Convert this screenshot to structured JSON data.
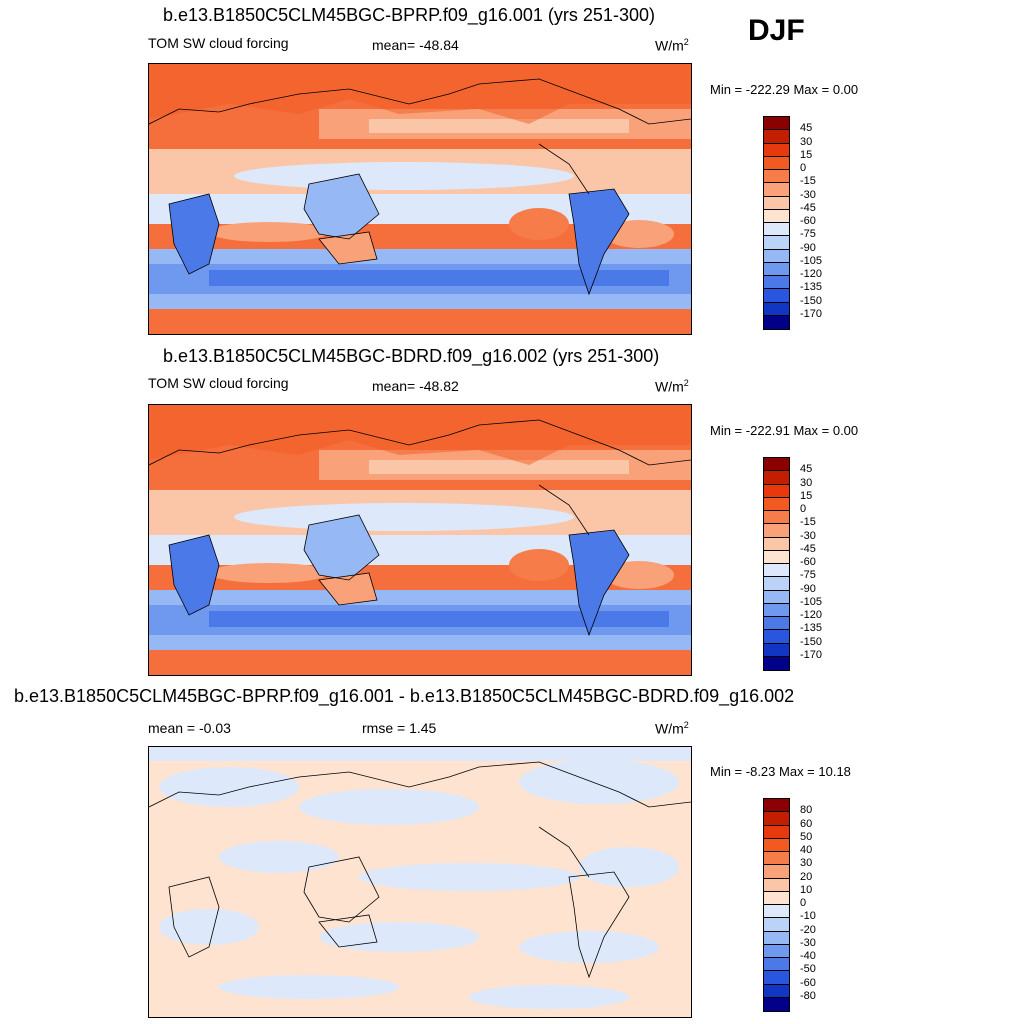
{
  "season": "DJF",
  "panels": [
    {
      "title": "b.e13.B1850C5CLM45BGC-BPRP.f09_g16.001 (yrs 251-300)",
      "left_label": "TOM SW cloud forcing",
      "center_label": "mean= -48.84",
      "units": "W/m",
      "units_sup": "2",
      "minmax": "Min = -222.29 Max =   0.00",
      "type": "field",
      "colorbar": {
        "labels": [
          "45",
          "30",
          "15",
          "0",
          "-15",
          "-30",
          "-45",
          "-60",
          "-75",
          "-90",
          "-105",
          "-120",
          "-135",
          "-150",
          "-170"
        ],
        "colors": [
          "#8b0000",
          "#c41e00",
          "#e8380d",
          "#f25a22",
          "#f67c4a",
          "#f9a27a",
          "#fbc6a8",
          "#fde3d0",
          "#dde9fb",
          "#bcd3f8",
          "#96b8f4",
          "#6f99ee",
          "#4b79e8",
          "#2a55de",
          "#1236c4",
          "#000088"
        ]
      }
    },
    {
      "title": "b.e13.B1850C5CLM45BGC-BDRD.f09_g16.002 (yrs 251-300)",
      "left_label": "TOM SW cloud forcing",
      "center_label": "mean= -48.82",
      "units": "W/m",
      "units_sup": "2",
      "minmax": "Min = -222.91 Max =   0.00",
      "type": "field",
      "colorbar": {
        "labels": [
          "45",
          "30",
          "15",
          "0",
          "-15",
          "-30",
          "-45",
          "-60",
          "-75",
          "-90",
          "-105",
          "-120",
          "-135",
          "-150",
          "-170"
        ],
        "colors": [
          "#8b0000",
          "#c41e00",
          "#e8380d",
          "#f25a22",
          "#f67c4a",
          "#f9a27a",
          "#fbc6a8",
          "#fde3d0",
          "#dde9fb",
          "#bcd3f8",
          "#96b8f4",
          "#6f99ee",
          "#4b79e8",
          "#2a55de",
          "#1236c4",
          "#000088"
        ]
      }
    },
    {
      "title": "b.e13.B1850C5CLM45BGC-BPRP.f09_g16.001 - b.e13.B1850C5CLM45BGC-BDRD.f09_g16.002",
      "left_label": "mean =  -0.03",
      "center_label": "rmse =   1.45",
      "units": "W/m",
      "units_sup": "2",
      "minmax": "Min =  -8.23 Max =  10.18",
      "type": "diff",
      "colorbar": {
        "labels": [
          "80",
          "60",
          "50",
          "40",
          "30",
          "20",
          "10",
          "0",
          "-10",
          "-20",
          "-30",
          "-40",
          "-50",
          "-60",
          "-80"
        ],
        "colors": [
          "#8b0000",
          "#c41e00",
          "#e8380d",
          "#f25a22",
          "#f67c4a",
          "#f9a27a",
          "#fbc6a8",
          "#fde3d0",
          "#dde9fb",
          "#bcd3f8",
          "#96b8f4",
          "#6f99ee",
          "#4b79e8",
          "#2a55de",
          "#1236c4",
          "#000088"
        ]
      }
    }
  ]
}
